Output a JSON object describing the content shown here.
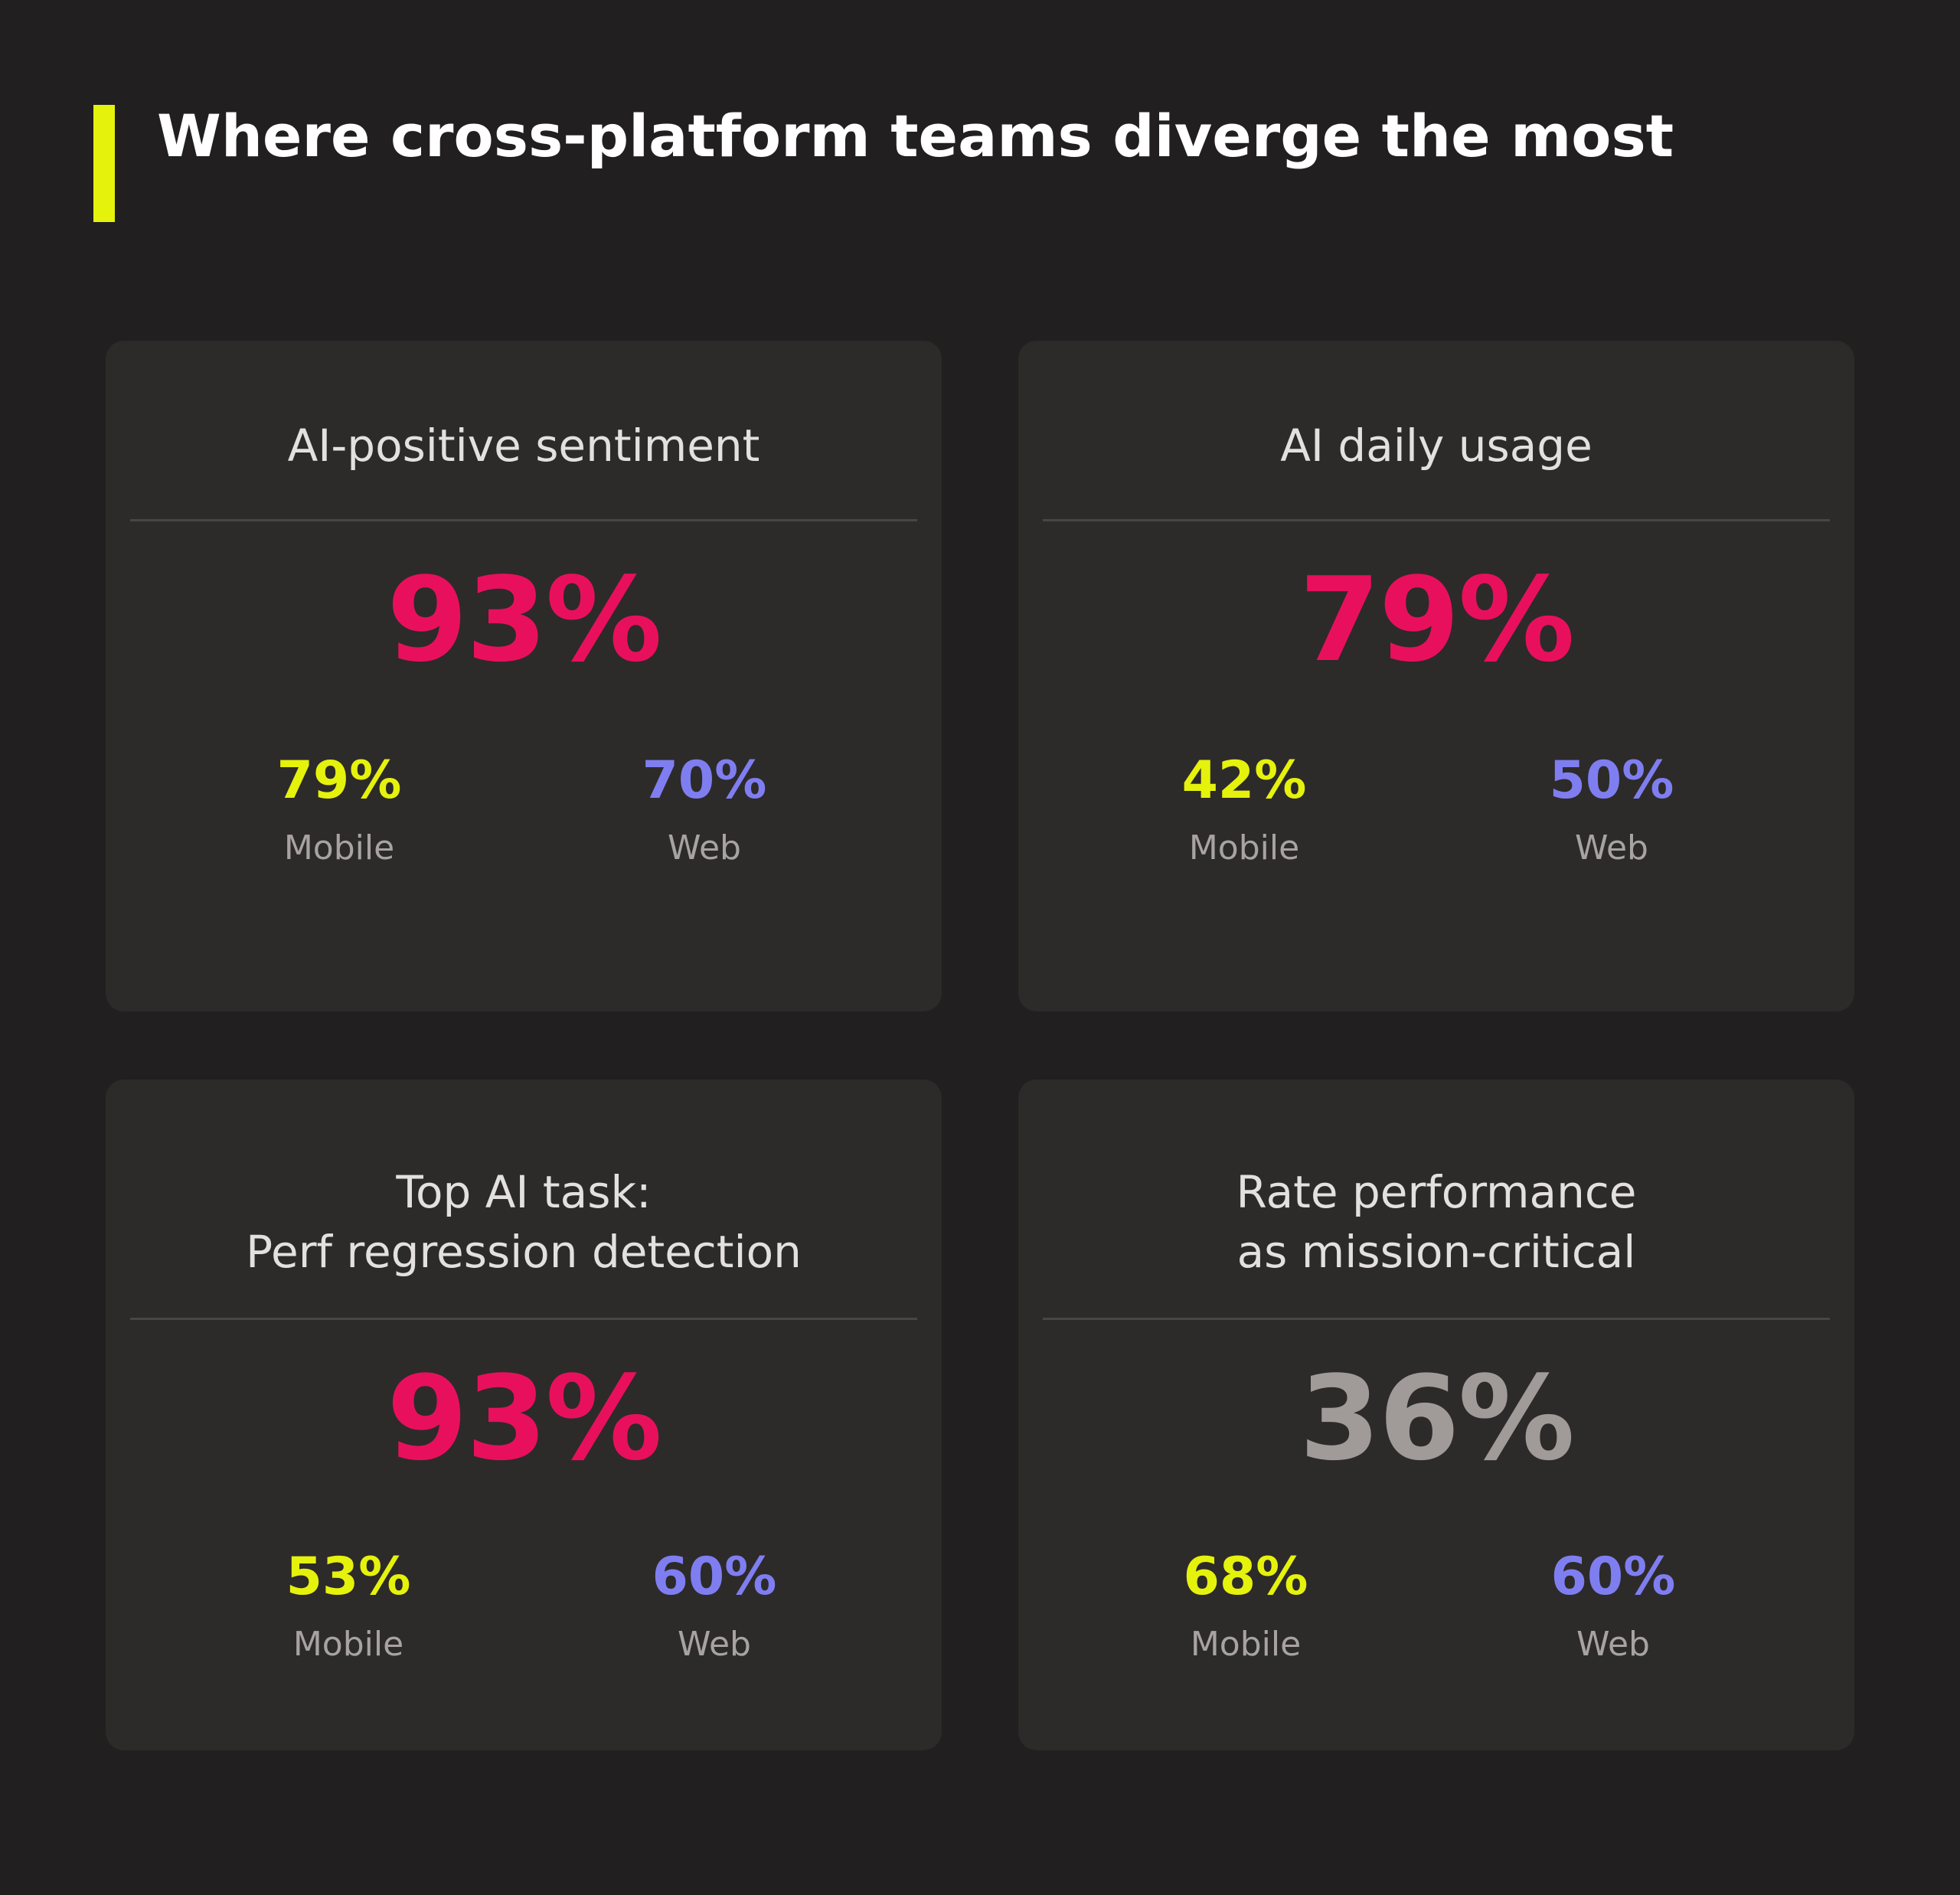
{
  "title": "Where cross-platform teams diverge the most",
  "colors": {
    "background": "#211f1f",
    "card": "#2d2a2a",
    "accent_bar": "#e5f20c",
    "highlight": "#e8105c",
    "muted": "#a09a98",
    "mobile": "#e5f20c",
    "web": "#7f7ef0"
  },
  "cards": [
    {
      "title_lines": [
        "AI-positive sentiment"
      ],
      "value": "93%",
      "value_color": "#e8105c",
      "mobile": {
        "value": "79%",
        "label": "Mobile"
      },
      "web": {
        "value": "70%",
        "label": "Web"
      }
    },
    {
      "title_lines": [
        "AI daily usage"
      ],
      "value": "79%",
      "value_color": "#e8105c",
      "mobile": {
        "value": "42%",
        "label": "Mobile"
      },
      "web": {
        "value": "50%",
        "label": "Web"
      }
    },
    {
      "title_lines": [
        "Top AI task:",
        "Perf regression detection"
      ],
      "value": "93%",
      "value_color": "#e8105c",
      "mobile": {
        "value": "53%",
        "label": "Mobile"
      },
      "web": {
        "value": "60%",
        "label": "Web"
      }
    },
    {
      "title_lines": [
        "Rate performance",
        "as mission-critical"
      ],
      "value": "36%",
      "value_color": "#a09a98",
      "mobile": {
        "value": "68%",
        "label": "Mobile"
      },
      "web": {
        "value": "60%",
        "label": "Web"
      }
    }
  ]
}
